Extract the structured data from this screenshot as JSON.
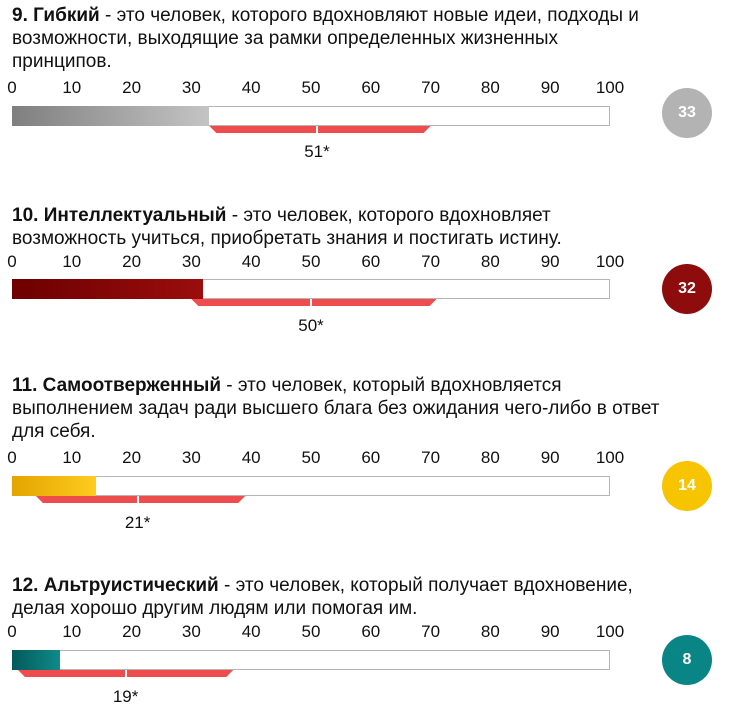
{
  "chart_data": [
    {
      "type": "bar",
      "title_bold": "9.  Гибкий",
      "description": " - это человек, которого вдохновляют новые идеи, подходы и возможности, выходящие за рамки определенных жизненных принципов.",
      "ticks": [
        0,
        10,
        20,
        30,
        40,
        50,
        60,
        70,
        80,
        90,
        100
      ],
      "xlim": [
        0,
        100
      ],
      "value": 33,
      "score_label": "33",
      "average": 51,
      "average_label": "51*",
      "range": [
        33,
        70
      ],
      "fill_from": "#7f7f7f",
      "fill_to": "#c4c4c4",
      "circle_color": "#b3b3b3"
    },
    {
      "type": "bar",
      "title_bold": "10.  Интеллектуальный",
      "description": " - это человек, которого вдохновляет возможность учиться, приобретать знания и постигать истину.",
      "ticks": [
        0,
        10,
        20,
        30,
        40,
        50,
        60,
        70,
        80,
        90,
        100
      ],
      "xlim": [
        0,
        100
      ],
      "value": 32,
      "score_label": "32",
      "average": 50,
      "average_label": "50*",
      "range": [
        30,
        71
      ],
      "fill_from": "#6d0000",
      "fill_to": "#9a0d0d",
      "circle_color": "#8e0c0c"
    },
    {
      "type": "bar",
      "title_bold": "11.  Самоотверженный",
      "description": " - это человек, который вдохновляется выполнением задач ради высшего блага без ожидания чего-либо в ответ для себя.",
      "ticks": [
        0,
        10,
        20,
        30,
        40,
        50,
        60,
        70,
        80,
        90,
        100
      ],
      "xlim": [
        0,
        100
      ],
      "value": 14,
      "score_label": "14",
      "average": 21,
      "average_label": "21*",
      "range": [
        4,
        39
      ],
      "fill_from": "#e3a400",
      "fill_to": "#ffcc1f",
      "circle_color": "#f7c400"
    },
    {
      "type": "bar",
      "title_bold": "12.  Альтруистический",
      "description": " - это человек, который получает вдохновение, делая хорошо другим людям или помогая им.",
      "ticks": [
        0,
        10,
        20,
        30,
        40,
        50,
        60,
        70,
        80,
        90,
        100
      ],
      "xlim": [
        0,
        100
      ],
      "value": 8,
      "score_label": "8",
      "average": 19,
      "average_label": "19*",
      "range": [
        1,
        37
      ],
      "fill_from": "#045a5a",
      "fill_to": "#0e8a8a",
      "circle_color": "#0a8585"
    }
  ]
}
